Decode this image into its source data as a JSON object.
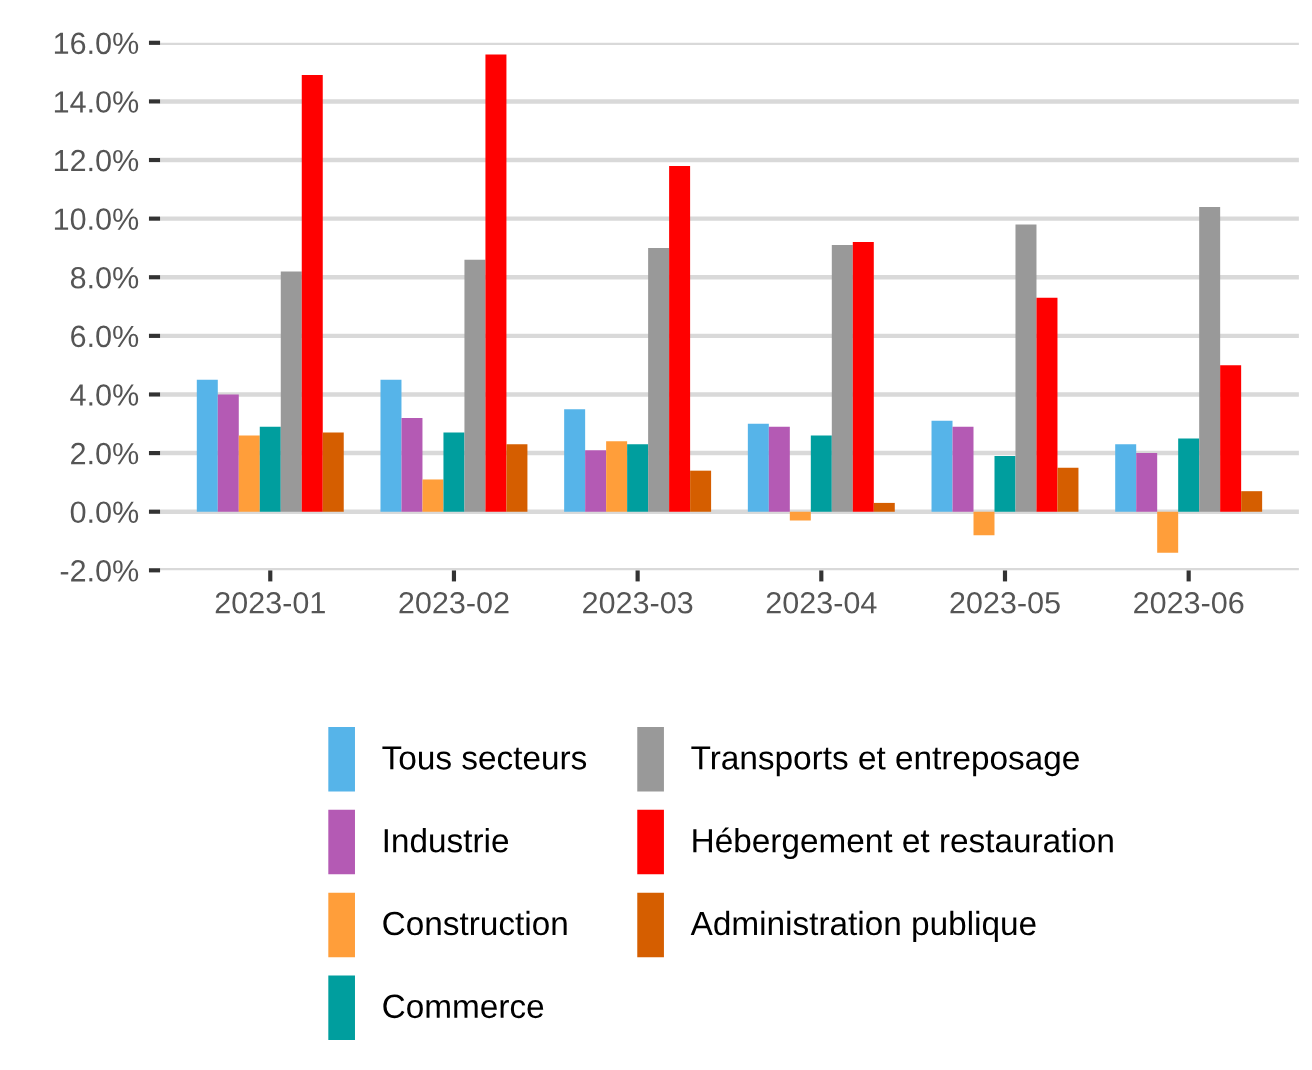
{
  "chart_data": {
    "type": "bar",
    "categories": [
      "2023-01",
      "2023-02",
      "2023-03",
      "2023-04",
      "2023-05",
      "2023-06"
    ],
    "series": [
      {
        "name": "Tous secteurs",
        "color": "#56b4e9",
        "values": [
          4.5,
          4.5,
          3.5,
          3.0,
          3.1,
          2.3
        ]
      },
      {
        "name": "Industrie",
        "color": "#b45ab4",
        "values": [
          4.0,
          3.2,
          2.1,
          2.9,
          2.9,
          2.0
        ]
      },
      {
        "name": "Construction",
        "color": "#ff9e3a",
        "values": [
          2.6,
          1.1,
          2.4,
          -0.3,
          -0.8,
          -1.4
        ]
      },
      {
        "name": "Commerce",
        "color": "#009e9e",
        "values": [
          2.9,
          2.7,
          2.3,
          2.6,
          1.9,
          2.5
        ]
      },
      {
        "name": "Transports et entreposage",
        "color": "#999999",
        "values": [
          8.2,
          8.6,
          9.0,
          9.1,
          9.8,
          10.4
        ]
      },
      {
        "name": "Hébergement et restauration",
        "color": "#ff0000",
        "values": [
          14.9,
          15.6,
          11.8,
          9.2,
          7.3,
          5.0
        ]
      },
      {
        "name": "Administration publique",
        "color": "#d55e00",
        "values": [
          2.7,
          2.3,
          1.4,
          0.3,
          1.5,
          0.7
        ]
      }
    ],
    "ylim": [
      -2,
      16
    ],
    "yticks": [
      {
        "value": -2,
        "label": "-2.0%"
      },
      {
        "value": 0,
        "label": "0.0%"
      },
      {
        "value": 2,
        "label": "2.0%"
      },
      {
        "value": 4,
        "label": "4.0%"
      },
      {
        "value": 6,
        "label": "6.0%"
      },
      {
        "value": 8,
        "label": "8.0%"
      },
      {
        "value": 10,
        "label": "10.0%"
      },
      {
        "value": 12,
        "label": "12.0%"
      },
      {
        "value": 14,
        "label": "14.0%"
      },
      {
        "value": 16,
        "label": "16.0%"
      }
    ],
    "grid": "y",
    "legend": "bottom"
  }
}
